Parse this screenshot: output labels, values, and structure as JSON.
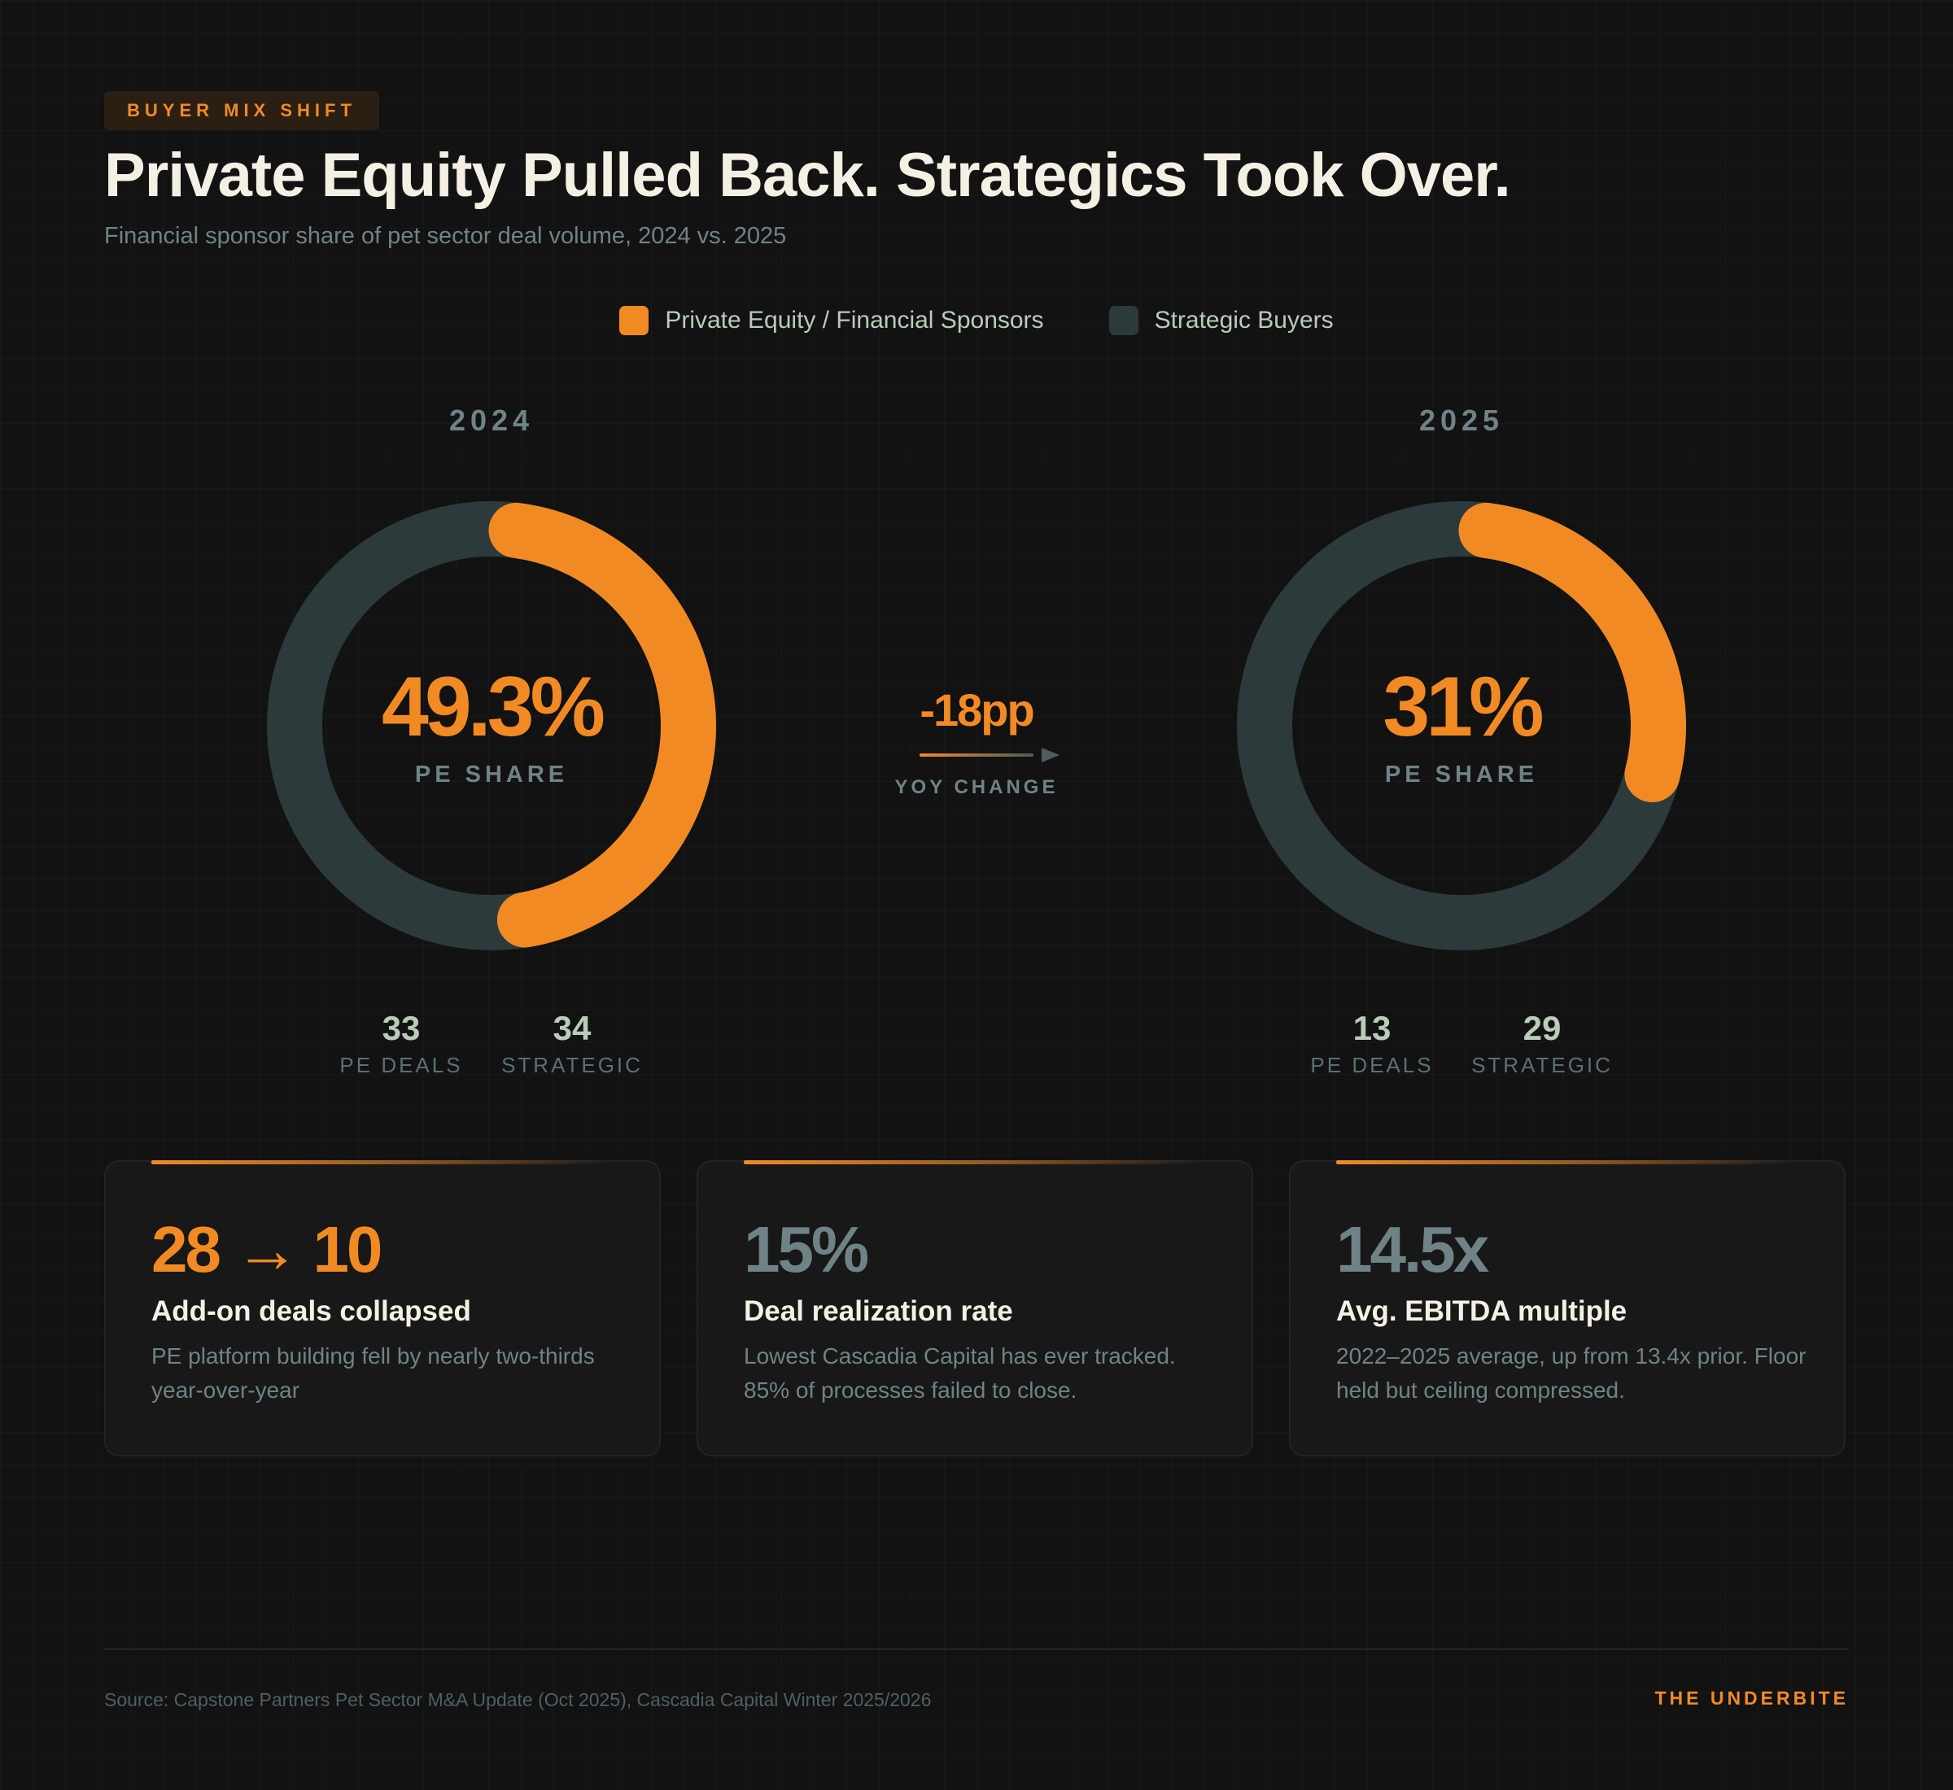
{
  "tag": "BUYER MIX SHIFT",
  "title": "Private Equity Pulled Back. Strategics Took Over.",
  "subtitle": "Financial sponsor share of pet sector deal volume, 2024 vs. 2025",
  "colors": {
    "pe": "#f28a24",
    "strategic": "#2d3a3b",
    "accent": "#f28a24",
    "muted": "#6f8387",
    "background": "#121212"
  },
  "legend": [
    {
      "label": "Private Equity / Financial Sponsors",
      "color": "#f28a24"
    },
    {
      "label": "Strategic Buyers",
      "color": "#2d3a3b"
    }
  ],
  "chart_data": {
    "type": "pie",
    "title": "Private Equity Pulled Back. Strategics Took Over.",
    "subtitle": "Financial sponsor share of pet sector deal volume, 2024 vs. 2025",
    "series_names": [
      "Private Equity / Financial Sponsors",
      "Strategic Buyers"
    ],
    "charts": [
      {
        "year": "2024",
        "pe_share_label": "49.3%",
        "pe_share": 49.3,
        "pe_deals": 33,
        "strategic_deals": 34
      },
      {
        "year": "2025",
        "pe_share_label": "31%",
        "pe_share": 31,
        "pe_deals": 13,
        "strategic_deals": 29
      }
    ],
    "change": "-18pp",
    "change_label": "YOY CHANGE",
    "share_label": "PE SHARE",
    "pe_deals_label": "PE DEALS",
    "strategic_label": "STRATEGIC"
  },
  "cards": [
    {
      "value": "28 → 10",
      "value_color": "#f28a24",
      "heading": "Add-on deals collapsed",
      "desc": "PE platform building fell by nearly two-thirds year-over-year"
    },
    {
      "value": "15%",
      "value_color": "#6f8387",
      "heading": "Deal realization rate",
      "desc": "Lowest Cascadia Capital has ever tracked. 85% of processes failed to close."
    },
    {
      "value": "14.5x",
      "value_color": "#6f8387",
      "heading": "Avg. EBITDA multiple",
      "desc": "2022–2025 average, up from 13.4x prior. Floor held but ceiling compressed."
    }
  ],
  "footer": {
    "source": "Source: Capstone Partners Pet Sector M&A Update (Oct 2025), Cascadia Capital Winter 2025/2026",
    "brand": "THE UNDERBITE"
  }
}
